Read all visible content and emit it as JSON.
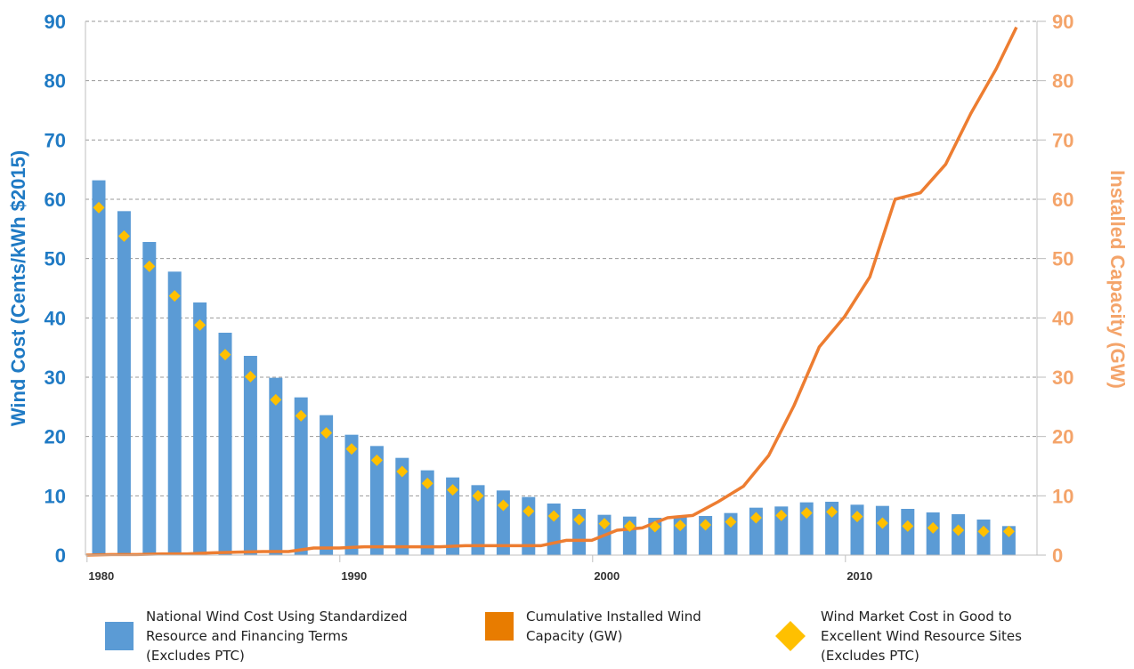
{
  "chart_data": {
    "type": "bar",
    "title": "",
    "xlabel": "",
    "ylabel": "Wind Cost (Cents/kWh $2015)",
    "y2label": "Installed Capacity (GW)",
    "ylim": [
      0,
      90
    ],
    "y2lim": [
      0,
      90
    ],
    "yticks": [
      "0",
      "10",
      "20",
      "30",
      "40",
      "50",
      "60",
      "70",
      "80",
      "90"
    ],
    "y2ticks": [
      "0",
      "10",
      "20",
      "30",
      "40",
      "50",
      "60",
      "70",
      "80",
      "90"
    ],
    "xticks": [
      "1980",
      "1990",
      "2000",
      "2010"
    ],
    "grid": "horizontal dashed",
    "legend_position": "bottom",
    "x": [
      1980,
      1981,
      1982,
      1983,
      1984,
      1985,
      1986,
      1987,
      1988,
      1989,
      1990,
      1991,
      1992,
      1993,
      1994,
      1995,
      1996,
      1997,
      1998,
      1999,
      2000,
      2001,
      2002,
      2003,
      2004,
      2005,
      2006,
      2007,
      2008,
      2009,
      2010,
      2011,
      2012,
      2013,
      2014,
      2015,
      2016
    ],
    "series": [
      {
        "name": "National Wind Cost Using Standardized\nResource and Financing Terms\n(Excludes PTC)",
        "kind": "bar",
        "axis": "left",
        "color": "#5b9bd5",
        "values": [
          63.2,
          58.0,
          52.8,
          47.8,
          42.6,
          37.5,
          33.6,
          29.9,
          26.6,
          23.6,
          20.3,
          18.4,
          16.4,
          14.3,
          13.1,
          11.8,
          10.9,
          9.8,
          8.7,
          7.8,
          6.8,
          6.5,
          6.3,
          6.5,
          6.6,
          7.1,
          8.0,
          8.2,
          8.9,
          9.0,
          8.5,
          8.3,
          7.8,
          7.2,
          6.9,
          6.0,
          4.9
        ]
      },
      {
        "name": "Cumulative Installed Wind\nCapacity (GW)",
        "kind": "line",
        "axis": "right",
        "color": "#ed7d31",
        "values": [
          0.0,
          0.1,
          0.1,
          0.2,
          0.2,
          0.4,
          0.5,
          0.6,
          0.6,
          1.2,
          1.2,
          1.4,
          1.4,
          1.4,
          1.4,
          1.6,
          1.6,
          1.6,
          1.6,
          2.5,
          2.5,
          4.2,
          4.6,
          6.3,
          6.7,
          9.0,
          11.6,
          16.8,
          25.2,
          35.1,
          40.2,
          46.9,
          60.0,
          61.1,
          65.9,
          74.5,
          82.0
        ]
      },
      {
        "name": "Wind Market Cost in Good to\nExcellent Wind Resource Sites\n(Excludes PTC)",
        "kind": "scatter",
        "axis": "left",
        "color": "#ffc000",
        "marker": "diamond",
        "values": [
          58.6,
          53.8,
          48.7,
          43.7,
          38.8,
          33.8,
          30.1,
          26.2,
          23.5,
          20.6,
          17.9,
          16.0,
          14.1,
          12.1,
          11.0,
          10.0,
          8.4,
          7.4,
          6.6,
          6.0,
          5.3,
          4.9,
          4.8,
          5.0,
          5.1,
          5.6,
          6.3,
          6.7,
          7.1,
          7.3,
          6.5,
          5.4,
          4.9,
          4.6,
          4.2,
          4.0,
          4.0
        ]
      }
    ],
    "line_extension": {
      "x": 2016.8,
      "value": 89.0
    }
  },
  "legend": [
    {
      "label": "National Wind Cost Using Standardized\nResource and Financing Terms\n(Excludes PTC)",
      "color": "#5b9bd5",
      "shape": "square"
    },
    {
      "label": "Cumulative Installed Wind\nCapacity (GW)",
      "color": "#e87c00",
      "shape": "square"
    },
    {
      "label": "Wind Market Cost in Good to\nExcellent Wind Resource Sites\n(Excludes PTC)",
      "color": "#ffc000",
      "shape": "diamond"
    }
  ],
  "colors": {
    "left_axis_text": "#1f7ac4",
    "right_axis_text": "#f4a46a",
    "grid": "#999999"
  }
}
